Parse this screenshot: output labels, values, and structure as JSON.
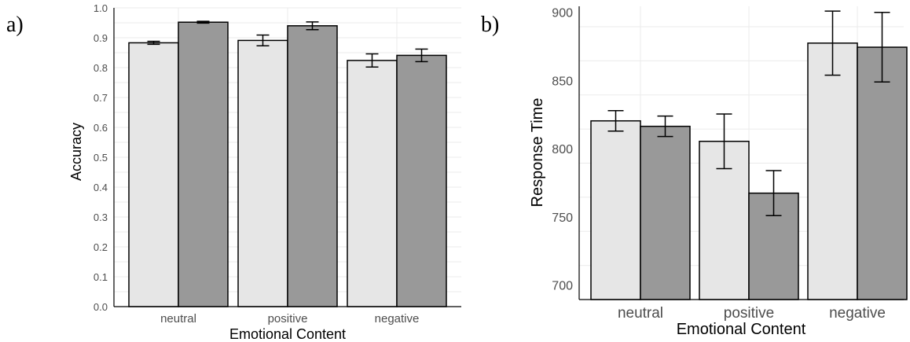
{
  "chart_data": [
    {
      "panel_label": "a)",
      "type": "bar",
      "categories": [
        "neutral",
        "positive",
        "negative"
      ],
      "series": [
        {
          "values": [
            0.883,
            0.891,
            0.824
          ],
          "errors": [
            0.005,
            0.018,
            0.022
          ],
          "color": "#e6e6e6"
        },
        {
          "values": [
            0.952,
            0.94,
            0.841
          ],
          "errors": [
            0.003,
            0.013,
            0.021
          ],
          "color": "#999999"
        }
      ],
      "xlabel": "Emotional Content",
      "ylabel": "Accuracy",
      "ylim": [
        0,
        1.0
      ],
      "yticks": [
        "0.0",
        "0.1",
        "0.2",
        "0.3",
        "0.4",
        "0.5",
        "0.6",
        "0.7",
        "0.8",
        "0.9",
        "1.0"
      ],
      "grid": true
    },
    {
      "panel_label": "b)",
      "type": "bar",
      "categories": [
        "neutral",
        "positive",
        "negative"
      ],
      "series": [
        {
          "values": [
            821,
            806,
            878
          ],
          "errors": [
            7.5,
            20,
            23.5
          ],
          "color": "#e6e6e6"
        },
        {
          "values": [
            817,
            768,
            875
          ],
          "errors": [
            7.5,
            16.5,
            25.5
          ],
          "color": "#999999"
        }
      ],
      "xlabel": "Emotional Content",
      "ylabel": "Response Time",
      "ylim": [
        690,
        905
      ],
      "yticks": [
        "700",
        "750",
        "800",
        "850",
        "900"
      ],
      "grid": true
    }
  ]
}
